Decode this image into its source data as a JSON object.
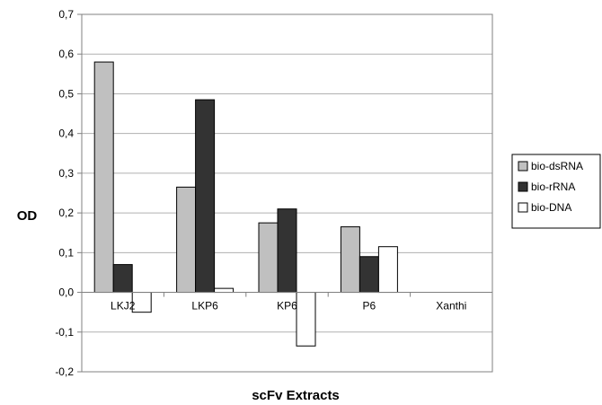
{
  "chart_data": {
    "type": "bar",
    "title": "",
    "xlabel": "scFv Extracts",
    "ylabel": "OD",
    "categories": [
      "LKJ2",
      "LKP6",
      "KP6",
      "P6",
      "Xanthi"
    ],
    "series": [
      {
        "name": "bio-dsRNA",
        "color": "#c0c0c0",
        "values": [
          0.58,
          0.265,
          0.175,
          0.165,
          null
        ]
      },
      {
        "name": "bio-rRNA",
        "color": "#333333",
        "values": [
          0.07,
          0.485,
          0.21,
          0.09,
          null
        ]
      },
      {
        "name": "bio-DNA",
        "color": "#ffffff",
        "values": [
          -0.05,
          0.01,
          -0.135,
          0.115,
          null
        ]
      }
    ],
    "ylim": [
      -0.2,
      0.7
    ],
    "yticks": [
      "-0,2",
      "-0,1",
      "0,0",
      "0,1",
      "0,2",
      "0,3",
      "0,4",
      "0,5",
      "0,6",
      "0,7"
    ],
    "grid": true,
    "legend_position": "right"
  }
}
